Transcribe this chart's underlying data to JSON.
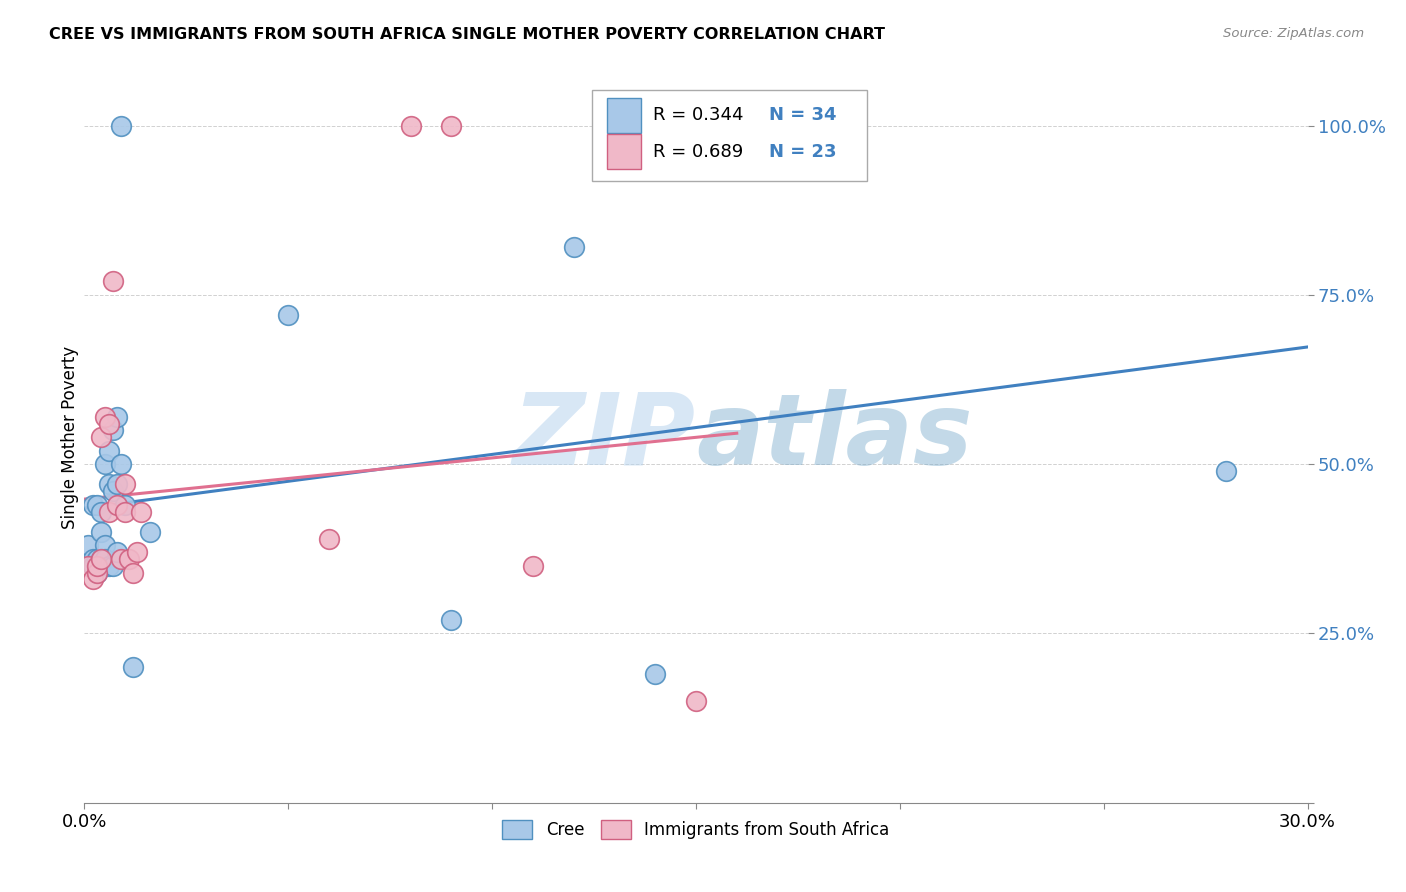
{
  "title": "CREE VS IMMIGRANTS FROM SOUTH AFRICA SINGLE MOTHER POVERTY CORRELATION CHART",
  "source": "Source: ZipAtlas.com",
  "ylabel": "Single Mother Poverty",
  "xlim": [
    0.0,
    0.3
  ],
  "ylim": [
    0.0,
    1.08
  ],
  "ytick_labels": [
    "",
    "25.0%",
    "50.0%",
    "75.0%",
    "100.0%"
  ],
  "ytick_values": [
    0.0,
    0.25,
    0.5,
    0.75,
    1.0
  ],
  "xtick_values": [
    0.0,
    0.05,
    0.1,
    0.15,
    0.2,
    0.25,
    0.3
  ],
  "cree_color": "#a8c8e8",
  "immigrant_color": "#f0b8c8",
  "cree_edge_color": "#5090c0",
  "immigrant_edge_color": "#d06080",
  "cree_line_color": "#4080c0",
  "immigrant_line_color": "#e07090",
  "legend_r_cree": "R = 0.344",
  "legend_n_cree": "N = 34",
  "legend_r_immigrant": "R = 0.689",
  "legend_n_immigrant": "N = 23",
  "watermark_zip": "ZIP",
  "watermark_atlas": "atlas",
  "bottom_legend_cree": "Cree",
  "bottom_legend_immigrant": "Immigrants from South Africa",
  "cree_x": [
    0.001,
    0.002,
    0.002,
    0.002,
    0.003,
    0.003,
    0.003,
    0.003,
    0.004,
    0.004,
    0.004,
    0.005,
    0.005,
    0.005,
    0.006,
    0.006,
    0.006,
    0.007,
    0.007,
    0.007,
    0.008,
    0.008,
    0.008,
    0.009,
    0.009,
    0.01,
    0.012,
    0.016,
    0.05,
    0.09,
    0.12,
    0.14,
    0.16,
    0.28
  ],
  "cree_y": [
    0.38,
    0.36,
    0.35,
    0.44,
    0.36,
    0.35,
    0.34,
    0.44,
    0.43,
    0.4,
    0.36,
    0.5,
    0.38,
    0.36,
    0.52,
    0.47,
    0.35,
    0.55,
    0.46,
    0.35,
    0.57,
    0.47,
    0.37,
    0.5,
    1.0,
    0.44,
    0.2,
    0.4,
    0.72,
    0.27,
    0.82,
    0.19,
    1.0,
    0.49
  ],
  "immigrant_x": [
    0.001,
    0.002,
    0.003,
    0.003,
    0.004,
    0.004,
    0.005,
    0.006,
    0.006,
    0.007,
    0.008,
    0.009,
    0.01,
    0.01,
    0.011,
    0.012,
    0.013,
    0.014,
    0.06,
    0.08,
    0.09,
    0.11,
    0.15
  ],
  "immigrant_y": [
    0.35,
    0.33,
    0.34,
    0.35,
    0.54,
    0.36,
    0.57,
    0.56,
    0.43,
    0.77,
    0.44,
    0.36,
    0.47,
    0.43,
    0.36,
    0.34,
    0.37,
    0.43,
    0.39,
    1.0,
    1.0,
    0.35,
    0.15
  ]
}
